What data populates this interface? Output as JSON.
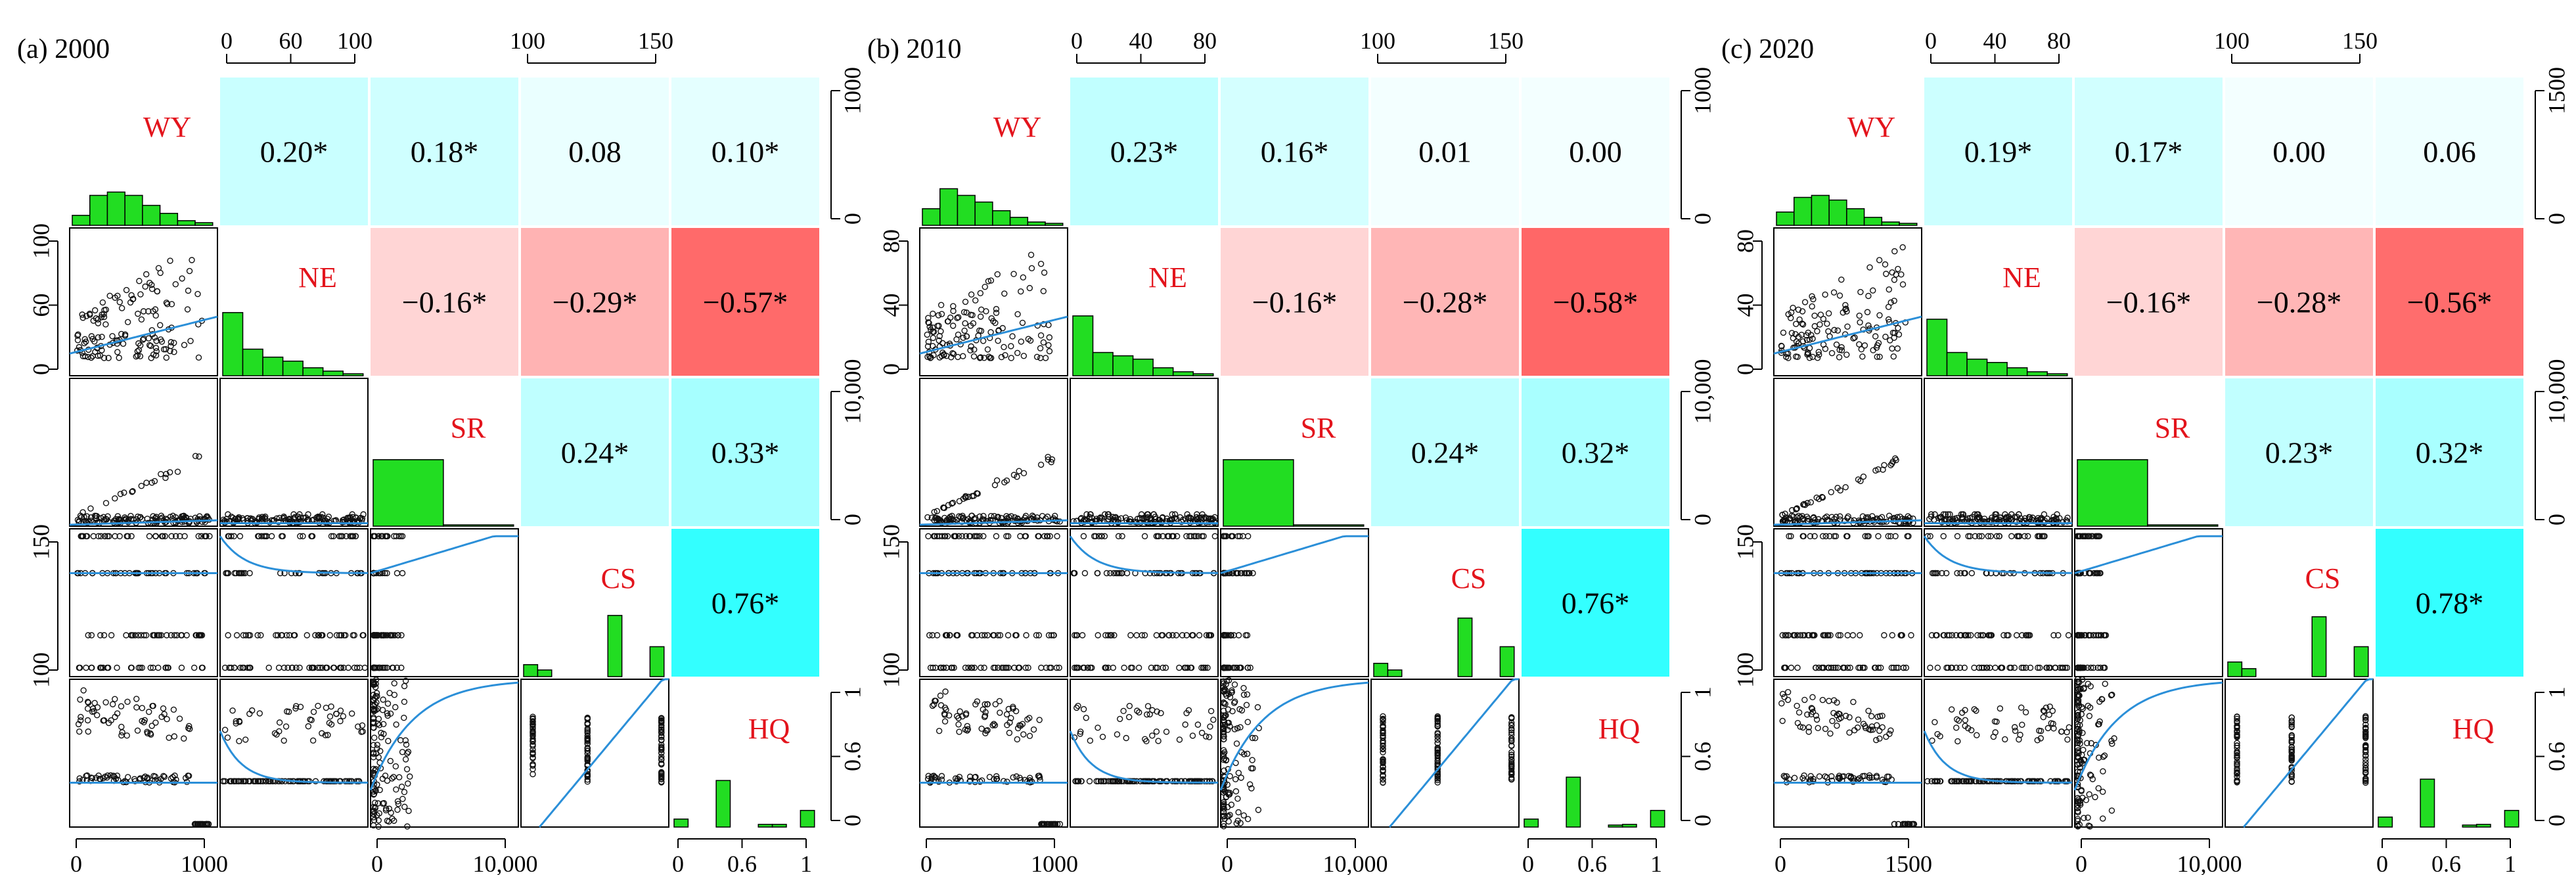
{
  "variables": [
    "WY",
    "NE",
    "SR",
    "CS",
    "HQ"
  ],
  "colors": {
    "label": "#e3141c",
    "hist_fill": "#22dd22",
    "smooth_line": "#2b8fd8",
    "point": "#111111",
    "positive_strong": "#33ffff",
    "negative_strong": "#ff6a6a"
  },
  "chart_data": [
    {
      "type": "scatter-matrix",
      "panel_label": "(a) 2000",
      "correlations": {
        "WY-NE": "0.20*",
        "WY-SR": "0.18*",
        "WY-CS": "0.08",
        "WY-HQ": "0.10*",
        "NE-SR": "−0.16*",
        "NE-CS": "−0.29*",
        "NE-HQ": "−0.57*",
        "SR-CS": "0.24*",
        "SR-HQ": "0.33*",
        "CS-HQ": "0.76*"
      },
      "correlation_values": {
        "WY-NE": 0.2,
        "WY-SR": 0.18,
        "WY-CS": 0.08,
        "WY-HQ": 0.1,
        "NE-SR": -0.16,
        "NE-CS": -0.29,
        "NE-HQ": -0.57,
        "SR-CS": 0.24,
        "SR-HQ": 0.33,
        "CS-HQ": 0.76
      },
      "axes": {
        "top_NE": [
          "0",
          "60",
          "100"
        ],
        "top_CS": [
          "100",
          "150"
        ],
        "right_WY": [
          "0",
          "1000"
        ],
        "right_SR": [
          "0",
          "10,000"
        ],
        "right_HQ": [
          "0",
          "0.6",
          "1"
        ],
        "left_NE": [
          "0",
          "60",
          "100"
        ],
        "left_CS": [
          "100",
          "150"
        ],
        "bottom_WY": [
          "0",
          "1000"
        ],
        "bottom_SR": [
          "0",
          "10,000"
        ],
        "bottom_HQ": [
          "0",
          "0.6",
          "1"
        ]
      },
      "histograms": {
        "WY": [
          0.15,
          0.45,
          0.5,
          0.45,
          0.3,
          0.18,
          0.07,
          0.04
        ],
        "NE": [
          0.95,
          0.4,
          0.28,
          0.22,
          0.12,
          0.07,
          0.03
        ],
        "SR": [
          1.0,
          0.02
        ],
        "CS": [
          0.18,
          0.1,
          0.0,
          0.0,
          0.0,
          0.0,
          0.92,
          0.0,
          0.0,
          0.45
        ],
        "HQ": [
          0.12,
          0.0,
          0.0,
          0.7,
          0.0,
          0.0,
          0.04,
          0.04,
          0.0,
          0.25
        ]
      }
    },
    {
      "type": "scatter-matrix",
      "panel_label": "(b) 2010",
      "correlations": {
        "WY-NE": "0.23*",
        "WY-SR": "0.16*",
        "WY-CS": "0.01",
        "WY-HQ": "0.00",
        "NE-SR": "−0.16*",
        "NE-CS": "−0.28*",
        "NE-HQ": "−0.58*",
        "SR-CS": "0.24*",
        "SR-HQ": "0.32*",
        "CS-HQ": "0.76*"
      },
      "correlation_values": {
        "WY-NE": 0.23,
        "WY-SR": 0.16,
        "WY-CS": 0.01,
        "WY-HQ": 0.0,
        "NE-SR": -0.16,
        "NE-CS": -0.28,
        "NE-HQ": -0.58,
        "SR-CS": 0.24,
        "SR-HQ": 0.32,
        "CS-HQ": 0.76
      },
      "axes": {
        "top_NE": [
          "0",
          "40",
          "80"
        ],
        "top_CS": [
          "100",
          "150"
        ],
        "right_WY": [
          "0",
          "1000"
        ],
        "right_SR": [
          "0",
          "10,000"
        ],
        "right_HQ": [
          "0",
          "0.6",
          "1"
        ],
        "left_NE": [
          "0",
          "40",
          "80"
        ],
        "left_CS": [
          "100",
          "150"
        ],
        "bottom_WY": [
          "0",
          "1000"
        ],
        "bottom_SR": [
          "0",
          "10,000"
        ],
        "bottom_HQ": [
          "0",
          "0.6",
          "1"
        ]
      },
      "histograms": {
        "WY": [
          0.25,
          0.55,
          0.45,
          0.35,
          0.22,
          0.12,
          0.05,
          0.03
        ],
        "NE": [
          0.9,
          0.35,
          0.3,
          0.25,
          0.12,
          0.06,
          0.03
        ],
        "SR": [
          1.0,
          0.02
        ],
        "CS": [
          0.2,
          0.1,
          0.0,
          0.0,
          0.0,
          0.0,
          0.88,
          0.0,
          0.0,
          0.45
        ],
        "HQ": [
          0.12,
          0.0,
          0.0,
          0.75,
          0.0,
          0.0,
          0.03,
          0.04,
          0.0,
          0.25
        ]
      }
    },
    {
      "type": "scatter-matrix",
      "panel_label": "(c) 2020",
      "correlations": {
        "WY-NE": "0.19*",
        "WY-SR": "0.17*",
        "WY-CS": "0.00",
        "WY-HQ": "0.06",
        "NE-SR": "−0.16*",
        "NE-CS": "−0.28*",
        "NE-HQ": "−0.56*",
        "SR-CS": "0.23*",
        "SR-HQ": "0.32*",
        "CS-HQ": "0.78*"
      },
      "correlation_values": {
        "WY-NE": 0.19,
        "WY-SR": 0.17,
        "WY-CS": 0.0,
        "WY-HQ": 0.06,
        "NE-SR": -0.16,
        "NE-CS": -0.28,
        "NE-HQ": -0.56,
        "SR-CS": 0.23,
        "SR-HQ": 0.32,
        "CS-HQ": 0.78
      },
      "axes": {
        "top_NE": [
          "0",
          "40",
          "80"
        ],
        "top_CS": [
          "100",
          "150"
        ],
        "right_WY": [
          "0",
          "1500"
        ],
        "right_SR": [
          "0",
          "10,000"
        ],
        "right_HQ": [
          "0",
          "0.6",
          "1"
        ],
        "left_NE": [
          "0",
          "40",
          "80"
        ],
        "left_CS": [
          "100",
          "150"
        ],
        "bottom_WY": [
          "0",
          "1500"
        ],
        "bottom_SR": [
          "0",
          "10,000"
        ],
        "bottom_HQ": [
          "0",
          "0.6",
          "1"
        ]
      },
      "histograms": {
        "WY": [
          0.2,
          0.42,
          0.45,
          0.38,
          0.25,
          0.12,
          0.05,
          0.03
        ],
        "NE": [
          0.85,
          0.35,
          0.25,
          0.2,
          0.12,
          0.06,
          0.03
        ],
        "SR": [
          1.0,
          0.02
        ],
        "CS": [
          0.22,
          0.12,
          0.0,
          0.0,
          0.0,
          0.0,
          0.9,
          0.0,
          0.0,
          0.45
        ],
        "HQ": [
          0.15,
          0.0,
          0.0,
          0.72,
          0.0,
          0.0,
          0.03,
          0.04,
          0.0,
          0.25
        ]
      }
    }
  ]
}
